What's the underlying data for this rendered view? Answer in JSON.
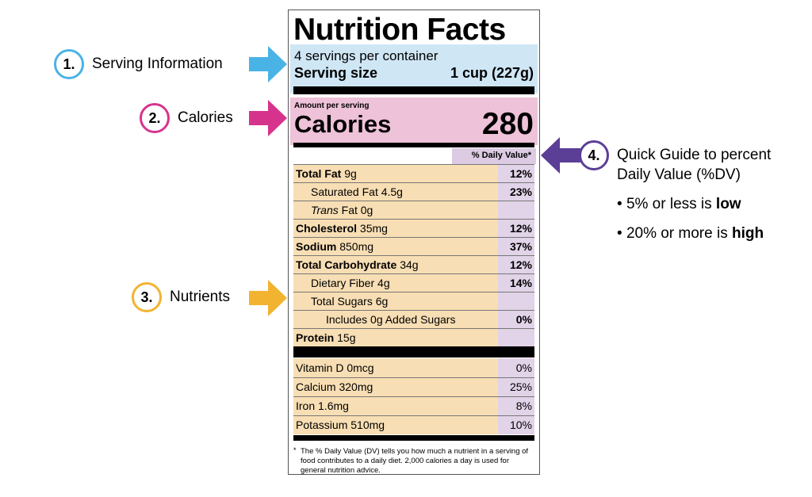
{
  "callouts": [
    {
      "number": "1.",
      "label": "Serving Information",
      "color": "#4ab3e6"
    },
    {
      "number": "2.",
      "label": "Calories",
      "color": "#d6348c"
    },
    {
      "number": "3.",
      "label": "Nutrients",
      "color": "#f2b331"
    },
    {
      "number": "4.",
      "label": "Quick Guide to percent Daily Value (%DV)",
      "color": "#5b3e96"
    }
  ],
  "label": {
    "title": "Nutrition Facts",
    "servings_per_container": "4 servings per container",
    "serving_size_label": "Serving size",
    "serving_size_value": "1 cup (227g)",
    "amount_per_serving": "Amount per serving",
    "calories_label": "Calories",
    "calories_value": "280",
    "daily_value_header": "% Daily Value*",
    "nutrients": [
      {
        "name": "Total Fat",
        "amount": "9g",
        "dv": "12%"
      },
      {
        "name": "Saturated Fat",
        "amount": "4.5g",
        "dv": "23%"
      },
      {
        "name": "Trans",
        "suffix": "Fat 0g",
        "dv": ""
      },
      {
        "name": "Cholesterol",
        "amount": "35mg",
        "dv": "12%"
      },
      {
        "name": "Sodium",
        "amount": "850mg",
        "dv": "37%"
      },
      {
        "name": "Total Carbohydrate",
        "amount": "34g",
        "dv": "12%"
      },
      {
        "name": "Dietary Fiber",
        "amount": "4g",
        "dv": "14%"
      },
      {
        "name": "Total Sugars",
        "amount": "6g",
        "dv": ""
      },
      {
        "name": "Includes 0g Added Sugars",
        "amount": "",
        "dv": "0%"
      },
      {
        "name": "Protein",
        "amount": "15g",
        "dv": ""
      }
    ],
    "vitamins": [
      {
        "name": "Vitamin D",
        "amount": "0mcg",
        "dv": "0%"
      },
      {
        "name": "Calcium",
        "amount": "320mg",
        "dv": "25%"
      },
      {
        "name": "Iron",
        "amount": "1.6mg",
        "dv": "8%"
      },
      {
        "name": "Potassium",
        "amount": "510mg",
        "dv": "10%"
      }
    ],
    "footnote_star": "*",
    "footnote": "The % Daily Value (DV) tells you how much a nutrient in a serving of food contributes to a daily diet. 2,000 calories a day is used for general nutrition advice."
  },
  "guide": {
    "bullet_low_prefix": "5% or less is",
    "bullet_low_emph": "low",
    "bullet_high_prefix": "20% or more is",
    "bullet_high_emph": "high",
    "bullet_mark": "•"
  }
}
